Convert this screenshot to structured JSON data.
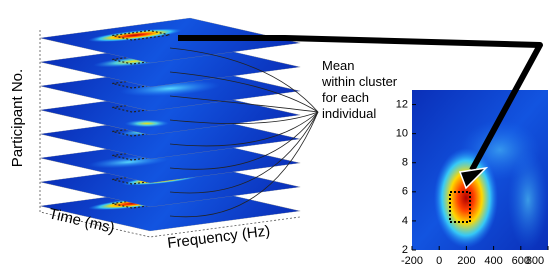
{
  "labels": {
    "participant": "Participant No.",
    "time": "Time (ms)",
    "frequency": "Frequency (Hz)",
    "annotation": [
      "Mean",
      "within cluster",
      "for each",
      "individual"
    ]
  },
  "inset": {
    "xlim": [
      -200,
      800
    ],
    "ylim": [
      2,
      13
    ],
    "xticks": [
      -200,
      0,
      200,
      400,
      600,
      800
    ],
    "yticks": [
      2,
      4,
      6,
      8,
      10,
      12
    ]
  }
}
